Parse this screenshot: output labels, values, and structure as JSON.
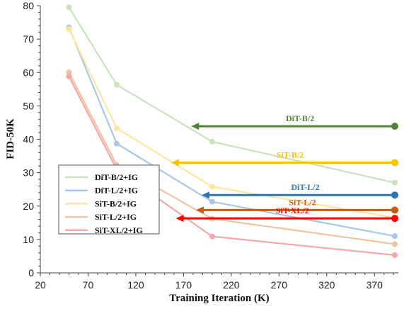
{
  "chart_data": {
    "type": "line",
    "xlabel": "Training Iteration (K)",
    "ylabel": "FID-50K",
    "xlim": [
      20,
      395
    ],
    "ylim": [
      0,
      80
    ],
    "xticks": [
      20,
      70,
      120,
      170,
      220,
      270,
      320,
      370
    ],
    "yticks": [
      0,
      10,
      20,
      30,
      40,
      50,
      60,
      70,
      80
    ],
    "x": [
      50,
      100,
      200,
      400
    ],
    "series": [
      {
        "name": "DiT-B/2+IG",
        "color": "#c9e3be",
        "values": [
          79.5,
          56.3,
          39.3,
          27.0
        ]
      },
      {
        "name": "DiT-L/2+IG",
        "color": "#a8c8ea",
        "values": [
          73.5,
          38.7,
          21.3,
          11.0
        ]
      },
      {
        "name": "SiT-B/2+IG",
        "color": "#ffe6a0",
        "values": [
          73.0,
          43.3,
          25.8,
          16.5
        ]
      },
      {
        "name": "SiT-L/2+IG",
        "color": "#f0c4a0",
        "values": [
          60.0,
          32.3,
          16.2,
          8.6
        ]
      },
      {
        "name": "SiT-XL/2+IG",
        "color": "#f6a8a8",
        "values": [
          58.8,
          31.0,
          10.9,
          5.3
        ]
      }
    ],
    "baselines": [
      {
        "name": "DiT-B/2",
        "color": "#548235",
        "value": 43.9,
        "reached_at": 400,
        "arrow_to": 178
      },
      {
        "name": "SiT-B/2",
        "color": "#ffc000",
        "value": 33.0,
        "reached_at": 400,
        "arrow_to": 157
      },
      {
        "name": "DiT-L/2",
        "color": "#2e75b6",
        "value": 23.3,
        "reached_at": 400,
        "arrow_to": 189
      },
      {
        "name": "SiT-L/2",
        "color": "#c55a11",
        "value": 18.8,
        "reached_at": 400,
        "arrow_to": 183
      },
      {
        "name": "SiT-XL/2",
        "color": "#ff0000",
        "value": 16.3,
        "reached_at": 400,
        "arrow_to": 162
      }
    ],
    "legend_position": "lower-left",
    "grid": false
  }
}
